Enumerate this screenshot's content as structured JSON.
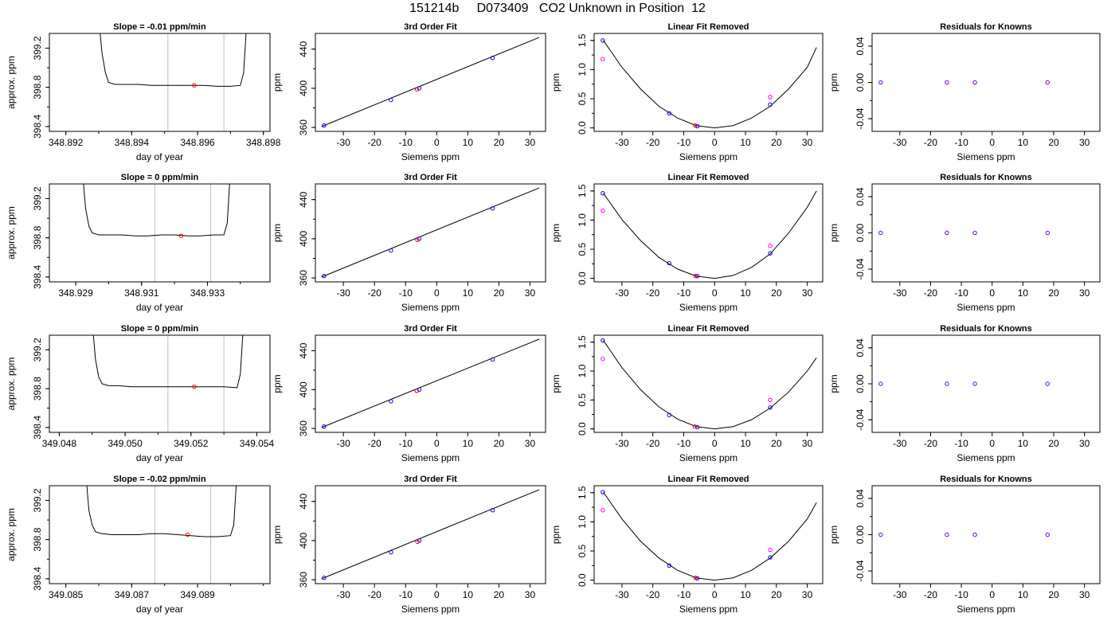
{
  "page": {
    "title": "151214b     D073409   CO2 Unknown in Position  12"
  },
  "colors": {
    "line": "#000000",
    "gridline": "#bebebe",
    "unknown_point": "#ff0000",
    "known_point": "#0000ff",
    "reference_point": "#ff00ff"
  },
  "chart_data": [
    {
      "type": "line",
      "row": 1,
      "panel": "time-series",
      "title": "Slope =  -0.01  ppm/min",
      "xlabel": "day of year",
      "ylabel": "approx. ppm",
      "xlim": [
        348.8915,
        348.8982
      ],
      "ylim": [
        398.35,
        399.35
      ],
      "xticks": [
        "348.892",
        "348.894",
        "348.896",
        "348.898"
      ],
      "yticks": [
        "398.4",
        "398.8",
        "399.2"
      ],
      "vlines": [
        348.8951,
        348.8968
      ],
      "series": [
        {
          "x": [
            348.893,
            348.8931,
            348.8932,
            348.8933,
            348.8935,
            348.8938,
            348.8942,
            348.8946,
            348.895,
            348.8954,
            348.8958,
            348.8962,
            348.8966,
            348.897,
            348.8973,
            348.8974,
            348.8975
          ],
          "y": [
            399.5,
            399.15,
            398.95,
            398.85,
            398.83,
            398.83,
            398.83,
            398.82,
            398.82,
            398.82,
            398.82,
            398.82,
            398.81,
            398.81,
            398.82,
            398.95,
            399.5
          ]
        }
      ],
      "marker": {
        "x": 348.8959,
        "y": 398.82
      }
    },
    {
      "type": "line",
      "row": 2,
      "panel": "time-series",
      "title": "Slope =  0  ppm/min",
      "xlabel": "day of year",
      "ylabel": "approx. ppm",
      "xlim": [
        348.9282,
        348.9349
      ],
      "ylim": [
        398.35,
        399.35
      ],
      "xticks": [
        "348.929",
        "348.931",
        "348.933"
      ],
      "yticks": [
        "398.4",
        "398.8",
        "399.2"
      ],
      "vlines": [
        348.9314,
        348.9331
      ],
      "series": [
        {
          "x": [
            348.9292,
            348.9293,
            348.9294,
            348.9295,
            348.9297,
            348.93,
            348.9304,
            348.9308,
            348.9312,
            348.9316,
            348.932,
            348.9324,
            348.9328,
            348.9332,
            348.9335,
            348.9336,
            348.9337
          ],
          "y": [
            399.5,
            399.1,
            398.92,
            398.85,
            398.83,
            398.83,
            398.83,
            398.82,
            398.82,
            398.83,
            398.83,
            398.82,
            398.82,
            398.83,
            398.83,
            398.95,
            399.5
          ]
        }
      ],
      "marker": {
        "x": 348.9322,
        "y": 398.82
      }
    },
    {
      "type": "line",
      "row": 3,
      "panel": "time-series",
      "title": "Slope =  0  ppm/min",
      "xlabel": "day of year",
      "ylabel": "approx. ppm",
      "xlim": [
        349.0477,
        349.0544
      ],
      "ylim": [
        398.35,
        399.35
      ],
      "xticks": [
        "349.048",
        "349.050",
        "349.052",
        "349.054"
      ],
      "yticks": [
        "398.4",
        "398.8",
        "399.2"
      ],
      "vlines": [
        349.0513,
        349.053
      ],
      "series": [
        {
          "x": [
            349.049,
            349.0491,
            349.0492,
            349.0493,
            349.0495,
            349.0498,
            349.0502,
            349.0506,
            349.051,
            349.0514,
            349.0518,
            349.0522,
            349.0526,
            349.053,
            349.0534,
            349.0535,
            349.0536
          ],
          "y": [
            399.5,
            399.1,
            398.92,
            398.85,
            398.83,
            398.83,
            398.82,
            398.82,
            398.82,
            398.82,
            398.82,
            398.82,
            398.82,
            398.82,
            398.81,
            398.95,
            399.5
          ]
        }
      ],
      "marker": {
        "x": 349.0521,
        "y": 398.82
      }
    },
    {
      "type": "line",
      "row": 4,
      "panel": "time-series",
      "title": "Slope =  -0.02  ppm/min",
      "xlabel": "day of year",
      "ylabel": "approx. ppm",
      "xlim": [
        349.0845,
        349.0912
      ],
      "ylim": [
        398.35,
        399.35
      ],
      "xticks": [
        "349.085",
        "349.087",
        "349.089"
      ],
      "yticks": [
        "398.4",
        "398.8",
        "399.2"
      ],
      "vlines": [
        349.0877,
        349.0894
      ],
      "series": [
        {
          "x": [
            349.0856,
            349.0857,
            349.0858,
            349.0859,
            349.0861,
            349.0864,
            349.0868,
            349.0872,
            349.0876,
            349.088,
            349.0884,
            349.0888,
            349.0892,
            349.0896,
            349.09,
            349.0901,
            349.0902
          ],
          "y": [
            399.5,
            399.1,
            398.95,
            398.88,
            398.86,
            398.85,
            398.85,
            398.85,
            398.86,
            398.86,
            398.85,
            398.84,
            398.83,
            398.83,
            398.84,
            398.95,
            399.5
          ]
        }
      ],
      "marker": {
        "x": 349.0887,
        "y": 398.85
      }
    },
    {
      "type": "scatter",
      "row": 1,
      "panel": "cubic-fit",
      "title": "3rd Order Fit",
      "xlabel": "Siemens ppm",
      "ylabel": "ppm",
      "xlim": [
        -39,
        35
      ],
      "ylim": [
        356,
        456
      ],
      "xticks": [
        "-30",
        "-20",
        "-10",
        "0",
        "10",
        "20",
        "30"
      ],
      "yticks": [
        "360",
        "400",
        "440"
      ],
      "fit_line": {
        "x": [
          -37,
          33
        ],
        "y": [
          361,
          452
        ]
      },
      "known_points": {
        "x": [
          -36.2,
          -14.7,
          -5.6,
          18.0
        ],
        "y": [
          362,
          388,
          400,
          431
        ]
      },
      "unknown_point": {
        "x": -6.3,
        "y": 398.8
      }
    },
    {
      "type": "scatter",
      "row": 2,
      "panel": "cubic-fit",
      "title": "3rd Order Fit",
      "xlabel": "Siemens ppm",
      "ylabel": "ppm",
      "xlim": [
        -39,
        35
      ],
      "ylim": [
        356,
        456
      ],
      "xticks": [
        "-30",
        "-20",
        "-10",
        "0",
        "10",
        "20",
        "30"
      ],
      "yticks": [
        "360",
        "400",
        "440"
      ],
      "fit_line": {
        "x": [
          -37,
          33
        ],
        "y": [
          361,
          452
        ]
      },
      "known_points": {
        "x": [
          -36.2,
          -14.7,
          -5.6,
          18.0
        ],
        "y": [
          362,
          388,
          400,
          431
        ]
      },
      "unknown_point": {
        "x": -6.2,
        "y": 398.8
      }
    },
    {
      "type": "scatter",
      "row": 3,
      "panel": "cubic-fit",
      "title": "3rd Order Fit",
      "xlabel": "Siemens ppm",
      "ylabel": "ppm",
      "xlim": [
        -39,
        35
      ],
      "ylim": [
        356,
        456
      ],
      "xticks": [
        "-30",
        "-20",
        "-10",
        "0",
        "10",
        "20",
        "30"
      ],
      "yticks": [
        "360",
        "400",
        "440"
      ],
      "fit_line": {
        "x": [
          -37,
          33
        ],
        "y": [
          361,
          452
        ]
      },
      "known_points": {
        "x": [
          -36.2,
          -14.7,
          -5.6,
          18.0
        ],
        "y": [
          362,
          388,
          400,
          431
        ]
      },
      "unknown_point": {
        "x": -6.4,
        "y": 398.8
      }
    },
    {
      "type": "scatter",
      "row": 4,
      "panel": "cubic-fit",
      "title": "3rd Order Fit",
      "xlabel": "Siemens ppm",
      "ylabel": "ppm",
      "xlim": [
        -39,
        35
      ],
      "ylim": [
        356,
        456
      ],
      "xticks": [
        "-30",
        "-20",
        "-10",
        "0",
        "10",
        "20",
        "30"
      ],
      "yticks": [
        "360",
        "400",
        "440"
      ],
      "fit_line": {
        "x": [
          -37,
          33
        ],
        "y": [
          361,
          452
        ]
      },
      "known_points": {
        "x": [
          -36.2,
          -14.7,
          -5.6,
          18.0
        ],
        "y": [
          362,
          388,
          400,
          431
        ]
      },
      "unknown_point": {
        "x": -6.2,
        "y": 398.8
      }
    },
    {
      "type": "scatter",
      "row": 1,
      "panel": "linear-fit-removed",
      "title": "Linear Fit Removed",
      "xlabel": "Siemens ppm",
      "ylabel": "ppm",
      "xlim": [
        -39,
        35
      ],
      "ylim": [
        -0.06,
        1.62
      ],
      "xticks": [
        "-30",
        "-20",
        "-10",
        "0",
        "10",
        "20",
        "30"
      ],
      "yticks": [
        "0.0",
        "0.5",
        "1.0",
        "1.5"
      ],
      "curve": {
        "x": [
          -36,
          -30,
          -24,
          -18,
          -12,
          -6,
          0,
          6,
          12,
          18,
          24,
          30,
          33
        ],
        "y": [
          1.5,
          1.04,
          0.67,
          0.37,
          0.17,
          0.04,
          0.0,
          0.04,
          0.17,
          0.37,
          0.67,
          1.04,
          1.38
        ]
      },
      "known_points": {
        "x": [
          -36.2,
          -14.7,
          -5.6,
          18.0
        ],
        "y": [
          1.5,
          0.25,
          0.03,
          0.4
        ]
      },
      "reference_points": {
        "x": [
          -36.2,
          18.0
        ],
        "y": [
          1.18,
          0.53
        ]
      },
      "unknown_point": {
        "x": -6.3,
        "y": 0.04
      }
    },
    {
      "type": "scatter",
      "row": 2,
      "panel": "linear-fit-removed",
      "title": "Linear Fit Removed",
      "xlabel": "Siemens ppm",
      "ylabel": "ppm",
      "xlim": [
        -39,
        35
      ],
      "ylim": [
        -0.06,
        1.62
      ],
      "xticks": [
        "-30",
        "-20",
        "-10",
        "0",
        "10",
        "20",
        "30"
      ],
      "yticks": [
        "0.0",
        "0.5",
        "1.0",
        "1.5"
      ],
      "curve": {
        "x": [
          -36,
          -30,
          -24,
          -18,
          -12,
          -6,
          0,
          6,
          12,
          18,
          24,
          30,
          33
        ],
        "y": [
          1.46,
          1.01,
          0.65,
          0.36,
          0.16,
          0.04,
          0.0,
          0.05,
          0.19,
          0.42,
          0.78,
          1.22,
          1.5
        ]
      },
      "known_points": {
        "x": [
          -36.2,
          -14.7,
          -5.6,
          18.0
        ],
        "y": [
          1.46,
          0.26,
          0.04,
          0.43
        ]
      },
      "reference_points": {
        "x": [
          -36.2,
          18.0
        ],
        "y": [
          1.16,
          0.56
        ]
      },
      "unknown_point": {
        "x": -6.2,
        "y": 0.04
      }
    },
    {
      "type": "scatter",
      "row": 3,
      "panel": "linear-fit-removed",
      "title": "Linear Fit Removed",
      "xlabel": "Siemens ppm",
      "ylabel": "ppm",
      "xlim": [
        -39,
        35
      ],
      "ylim": [
        -0.06,
        1.62
      ],
      "xticks": [
        "-30",
        "-20",
        "-10",
        "0",
        "10",
        "20",
        "30"
      ],
      "yticks": [
        "0.0",
        "0.5",
        "1.0",
        "1.5"
      ],
      "curve": {
        "x": [
          -36,
          -30,
          -24,
          -18,
          -12,
          -6,
          0,
          6,
          12,
          18,
          24,
          30,
          33
        ],
        "y": [
          1.53,
          1.06,
          0.68,
          0.38,
          0.17,
          0.04,
          0.0,
          0.04,
          0.16,
          0.36,
          0.64,
          1.0,
          1.23
        ]
      },
      "known_points": {
        "x": [
          -36.2,
          -14.7,
          -5.6,
          18.0
        ],
        "y": [
          1.53,
          0.24,
          0.03,
          0.37
        ]
      },
      "reference_points": {
        "x": [
          -36.2,
          18.0
        ],
        "y": [
          1.21,
          0.5
        ]
      },
      "unknown_point": {
        "x": -6.4,
        "y": 0.04
      }
    },
    {
      "type": "scatter",
      "row": 4,
      "panel": "linear-fit-removed",
      "title": "Linear Fit Removed",
      "xlabel": "Siemens ppm",
      "ylabel": "ppm",
      "xlim": [
        -39,
        35
      ],
      "ylim": [
        -0.06,
        1.62
      ],
      "xticks": [
        "-30",
        "-20",
        "-10",
        "0",
        "10",
        "20",
        "30"
      ],
      "yticks": [
        "0.0",
        "0.5",
        "1.0",
        "1.5"
      ],
      "curve": {
        "x": [
          -36,
          -30,
          -24,
          -18,
          -12,
          -6,
          0,
          6,
          12,
          18,
          24,
          30,
          33
        ],
        "y": [
          1.51,
          1.05,
          0.67,
          0.38,
          0.17,
          0.04,
          0.0,
          0.04,
          0.17,
          0.38,
          0.67,
          1.05,
          1.33
        ]
      },
      "known_points": {
        "x": [
          -36.2,
          -14.7,
          -5.6,
          18.0
        ],
        "y": [
          1.51,
          0.25,
          0.03,
          0.39
        ]
      },
      "reference_points": {
        "x": [
          -36.2,
          18.0
        ],
        "y": [
          1.2,
          0.52
        ]
      },
      "unknown_point": {
        "x": -6.2,
        "y": 0.04
      }
    },
    {
      "type": "scatter",
      "row": 1,
      "panel": "residuals",
      "title": "Residuals for Knowns",
      "xlabel": "Siemens ppm",
      "ylabel": "ppm",
      "xlim": [
        -39,
        35
      ],
      "ylim": [
        -0.054,
        0.054
      ],
      "xticks": [
        "-30",
        "-20",
        "-10",
        "0",
        "10",
        "20",
        "30"
      ],
      "yticks": [
        "-0.04",
        "0.00",
        "0.04"
      ],
      "known_points": {
        "x": [
          -36.2,
          -14.7,
          -5.6,
          18.0
        ],
        "y": [
          0,
          0,
          0,
          0
        ]
      }
    },
    {
      "type": "scatter",
      "row": 2,
      "panel": "residuals",
      "title": "Residuals for Knowns",
      "xlabel": "Siemens ppm",
      "ylabel": "ppm",
      "xlim": [
        -39,
        35
      ],
      "ylim": [
        -0.054,
        0.054
      ],
      "xticks": [
        "-30",
        "-20",
        "-10",
        "0",
        "10",
        "20",
        "30"
      ],
      "yticks": [
        "-0.04",
        "0.00",
        "0.04"
      ],
      "known_points": {
        "x": [
          -36.2,
          -14.7,
          -5.6,
          18.0
        ],
        "y": [
          0,
          0,
          0,
          0
        ]
      }
    },
    {
      "type": "scatter",
      "row": 3,
      "panel": "residuals",
      "title": "Residuals for Knowns",
      "xlabel": "Siemens ppm",
      "ylabel": "ppm",
      "xlim": [
        -39,
        35
      ],
      "ylim": [
        -0.054,
        0.054
      ],
      "xticks": [
        "-30",
        "-20",
        "-10",
        "0",
        "10",
        "20",
        "30"
      ],
      "yticks": [
        "-0.04",
        "0.00",
        "0.04"
      ],
      "known_points": {
        "x": [
          -36.2,
          -14.7,
          -5.6,
          18.0
        ],
        "y": [
          0,
          0,
          0,
          0
        ]
      }
    },
    {
      "type": "scatter",
      "row": 4,
      "panel": "residuals",
      "title": "Residuals for Knowns",
      "xlabel": "Siemens ppm",
      "ylabel": "ppm",
      "xlim": [
        -39,
        35
      ],
      "ylim": [
        -0.054,
        0.054
      ],
      "xticks": [
        "-30",
        "-20",
        "-10",
        "0",
        "10",
        "20",
        "30"
      ],
      "yticks": [
        "-0.04",
        "0.00",
        "0.04"
      ],
      "known_points": {
        "x": [
          -36.2,
          -14.7,
          -5.6,
          18.0
        ],
        "y": [
          0,
          0,
          0,
          0
        ]
      }
    }
  ]
}
